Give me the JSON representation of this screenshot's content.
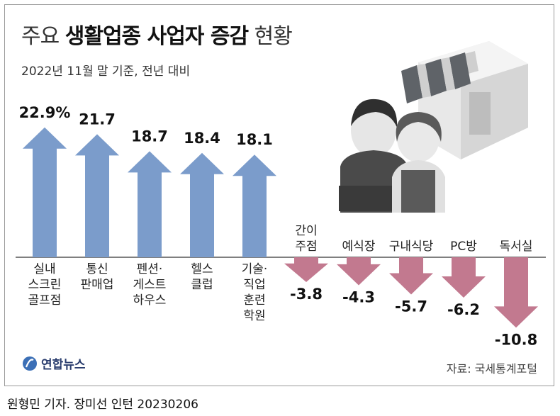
{
  "title": {
    "prefix": "주요",
    "highlight": "생활업종 사업자 증감",
    "suffix": "현황"
  },
  "subtitle": "2022년 11월 말 기준, 전년 대비",
  "source": "자료: 국세통계포털",
  "credit": "원형민 기자. 장미선 인턴 20230206",
  "logo_text": "연합뉴스",
  "colors": {
    "increase": "#7b9ccb",
    "decrease": "#c2798f",
    "baseline": "#555555"
  },
  "chart_data": {
    "type": "bar",
    "title": "주요 생활업종 사업자 증감 현황",
    "subtitle": "2022년 11월 말 기준, 전년 대비",
    "categories": [
      "실내 스크린 골프점",
      "통신 판매업",
      "펜션· 게스트 하우스",
      "헬스 클럽",
      "기술· 직업 훈련 학원",
      "간이 주점",
      "예식장",
      "구내식당",
      "PC방",
      "독서실"
    ],
    "category_lines": [
      [
        "실내",
        "스크린",
        "골프점"
      ],
      [
        "통신",
        "판매업"
      ],
      [
        "펜션·",
        "게스트",
        "하우스"
      ],
      [
        "헬스",
        "클럽"
      ],
      [
        "기술·",
        "직업",
        "훈련",
        "학원"
      ],
      [
        "간이",
        "주점"
      ],
      [
        "예식장"
      ],
      [
        "구내식당"
      ],
      [
        "PC방"
      ],
      [
        "독서실"
      ]
    ],
    "values": [
      22.9,
      21.7,
      18.7,
      18.4,
      18.1,
      -3.8,
      -4.3,
      -5.7,
      -6.2,
      -10.8
    ],
    "value_labels": [
      "22.9%",
      "21.7",
      "18.7",
      "18.4",
      "18.1",
      "-3.8",
      "-4.3",
      "-5.7",
      "-6.2",
      "-10.8"
    ],
    "unit": "%",
    "xlabel": "",
    "ylabel": "",
    "grid": false,
    "legend": "none"
  }
}
